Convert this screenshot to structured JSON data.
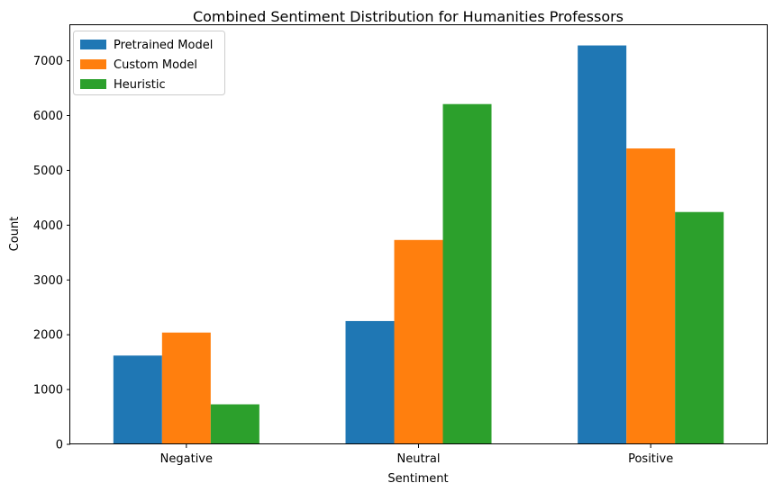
{
  "chart_data": {
    "type": "bar",
    "title": "Combined Sentiment Distribution for Humanities Professors",
    "xlabel": "Sentiment",
    "ylabel": "Count",
    "categories": [
      "Negative",
      "Neutral",
      "Positive"
    ],
    "series": [
      {
        "name": "Pretrained Model",
        "color": "#1f77b4",
        "values": [
          1620,
          2250,
          7280
        ]
      },
      {
        "name": "Custom Model",
        "color": "#ff7f0e",
        "values": [
          2040,
          3730,
          5400
        ]
      },
      {
        "name": "Heuristic",
        "color": "#2ca02c",
        "values": [
          730,
          6210,
          4240
        ]
      }
    ],
    "ylim": [
      0,
      7650
    ],
    "yticks": [
      0,
      1000,
      2000,
      3000,
      4000,
      5000,
      6000,
      7000
    ],
    "legend_position": "top-left",
    "grid": false
  }
}
